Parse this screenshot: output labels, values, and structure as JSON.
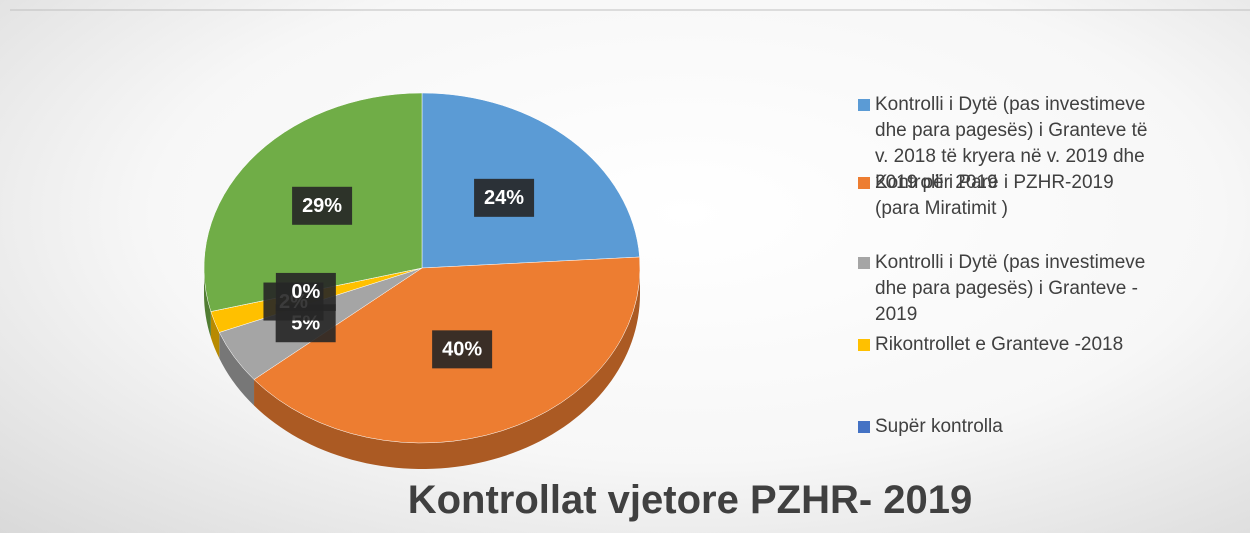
{
  "chart_data": {
    "type": "pie",
    "title": "Kontrollat vjetore PZHR- 2019",
    "categories": [
      "Kontrolli i Dytë (pas investimeve dhe para pagesës) i Granteve të v. 2018 të kryera në v. 2019 dhe 2019 për 2019",
      "Kontrolli i Parë i PZHR-2019 (para Miratimit )",
      "Kontrolli i Dytë (pas investimeve dhe para pagesës) i Granteve  - 2019",
      "Rikontrollet e Granteve -2018",
      "Supër kontrolla",
      null
    ],
    "values": [
      24,
      40,
      5,
      2,
      0,
      29
    ],
    "value_labels": [
      "24%",
      "40%",
      "5%",
      "2%",
      "0%",
      "29%"
    ],
    "colors": [
      "#5b9bd5",
      "#ed7d31",
      "#a5a5a5",
      "#ffc000",
      "#4472c4",
      "#70ad47"
    ],
    "legend": "right"
  }
}
